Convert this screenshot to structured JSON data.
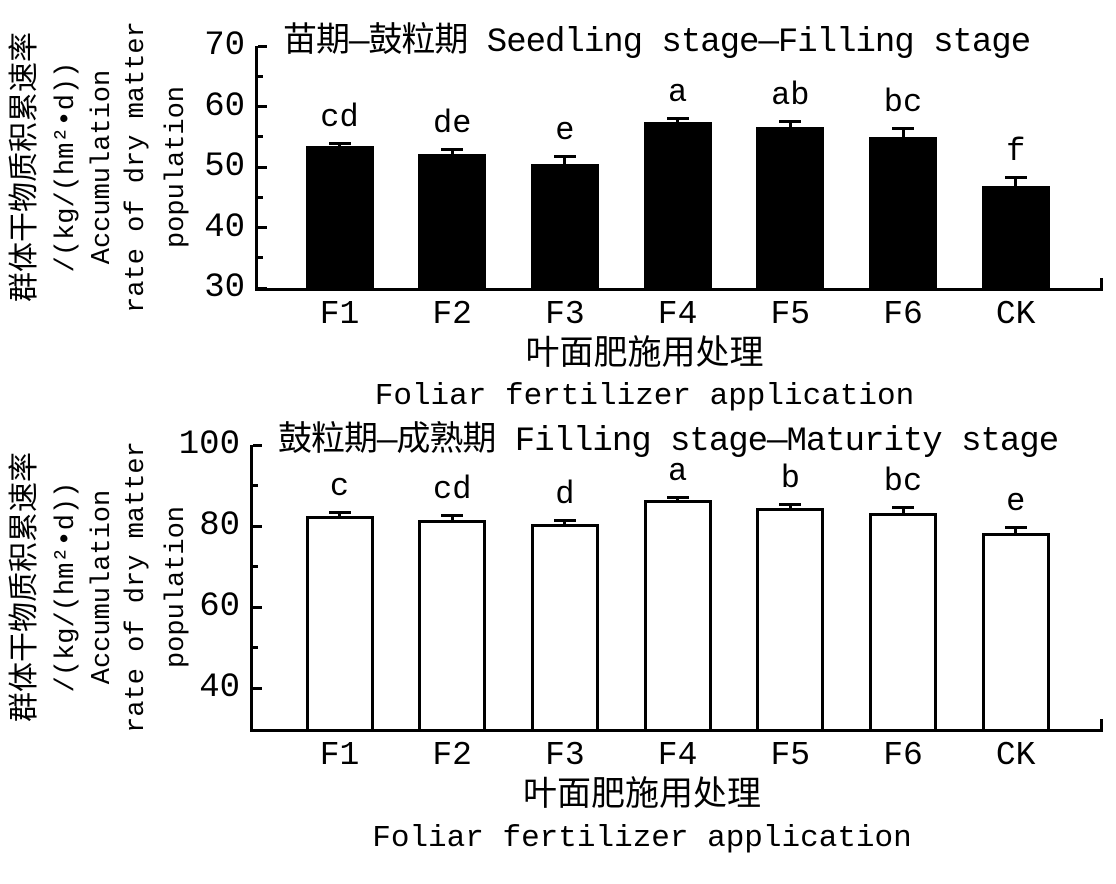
{
  "colors": {
    "foreground": "#000000",
    "background": "#ffffff"
  },
  "chart_data": [
    {
      "type": "bar",
      "title": "苗期—鼓粒期 Seedling stage—Filling stage",
      "categories": [
        "F1",
        "F2",
        "F3",
        "F4",
        "F5",
        "F6",
        "CK"
      ],
      "values": [
        53.4,
        52.2,
        50.5,
        57.5,
        56.6,
        55.0,
        46.8
      ],
      "errors": [
        0.6,
        0.7,
        1.3,
        0.6,
        1.0,
        1.5,
        1.6
      ],
      "sig_letters": [
        "cd",
        "de",
        "e",
        "a",
        "ab",
        "bc",
        "f"
      ],
      "bar_fill": "#000000",
      "bar_border": "#000000",
      "ylim": [
        30,
        70
      ],
      "yticks": [
        30,
        40,
        50,
        60,
        70
      ],
      "yticks_minor": [
        35,
        45,
        55,
        65
      ],
      "xlabel_zh": "叶面肥施用处理",
      "xlabel_en": "Foliar fertilizer application",
      "ylabel_lines": [
        "群体干物质积累速率",
        "/(kg/(hm²•d))",
        "Accumulation",
        "rate of dry matter",
        "population"
      ],
      "grid": false,
      "legend": null
    },
    {
      "type": "bar",
      "title": "鼓粒期—成熟期 Filling stage—Maturity stage",
      "categories": [
        "F1",
        "F2",
        "F3",
        "F4",
        "F5",
        "F6",
        "CK"
      ],
      "values": [
        82.5,
        81.5,
        80.5,
        86.5,
        84.5,
        83.3,
        78.2
      ],
      "errors": [
        1.0,
        1.2,
        1.1,
        0.6,
        1.0,
        1.5,
        1.6
      ],
      "sig_letters": [
        "c",
        "cd",
        "d",
        "a",
        "b",
        "bc",
        "e"
      ],
      "bar_fill": "#ffffff",
      "bar_border": "#000000",
      "ylim": [
        30,
        100
      ],
      "yticks": [
        40,
        60,
        80,
        100
      ],
      "yticks_minor": [
        50,
        70,
        90
      ],
      "xlabel_zh": "叶面肥施用处理",
      "xlabel_en": "Foliar fertilizer application",
      "ylabel_lines": [
        "群体干物质积累速率",
        "/(kg/(hm²•d))",
        "Accumulation",
        "rate of dry matter",
        "population"
      ],
      "grid": false,
      "legend": null
    }
  ]
}
